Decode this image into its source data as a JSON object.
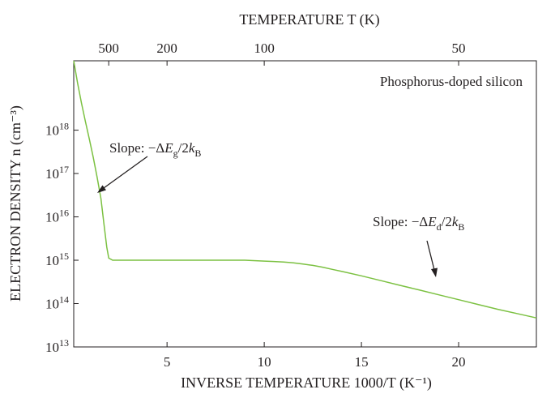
{
  "chart_data": {
    "type": "line",
    "title": "Phosphorus-doped silicon",
    "xlabel": "INVERSE TEMPERATURE 1000/T (K⁻¹)",
    "ylabel": "ELECTRON DENSITY n (cm⁻³)",
    "top_xlabel": "TEMPERATURE T (K)",
    "x_log": false,
    "y_log": true,
    "xlim": [
      0.2,
      24
    ],
    "ylim_exponent": [
      13,
      19.6
    ],
    "x_ticks": [
      5,
      10,
      15,
      20
    ],
    "x_tick_labels": [
      "5",
      "10",
      "15",
      "20"
    ],
    "y_ticks_exponent": [
      13,
      14,
      15,
      16,
      17,
      18
    ],
    "y_tick_labels_base": "10",
    "y_tick_labels_exp": [
      "13",
      "14",
      "15",
      "16",
      "17",
      "18"
    ],
    "top_ticks_T": [
      500,
      200,
      100,
      50
    ],
    "top_tick_labels": [
      "500",
      "200",
      "100",
      "50"
    ],
    "series": [
      {
        "x": [
          0.2,
          0.4,
          0.6,
          0.8,
          1.0,
          1.2,
          1.4,
          1.6,
          1.75,
          1.9,
          2.0,
          2.2,
          2.5,
          3,
          4,
          5,
          6,
          7,
          8,
          9,
          10,
          10.5,
          11,
          11.5,
          12,
          12.5,
          13,
          13.5,
          14,
          15,
          16,
          17,
          18,
          19,
          20,
          21,
          22,
          23,
          24
        ],
        "log_y": [
          19.6,
          19.08,
          18.62,
          18.2,
          17.8,
          17.38,
          16.92,
          16.42,
          15.85,
          15.3,
          15.05,
          15.0,
          15.0,
          15.0,
          15.0,
          15.0,
          15.0,
          15.0,
          15.0,
          15.0,
          14.98,
          14.97,
          14.96,
          14.94,
          14.91,
          14.88,
          14.84,
          14.79,
          14.74,
          14.64,
          14.53,
          14.42,
          14.31,
          14.2,
          14.09,
          13.98,
          13.87,
          13.77,
          13.67
        ]
      }
    ],
    "annotations": [
      {
        "prefix": "Slope: −Δ",
        "sym": "E",
        "sub": "g",
        "mid": "/2",
        "k": "k",
        "ksub": "B"
      },
      {
        "prefix": "Slope: −Δ",
        "sym": "E",
        "sub": "d",
        "mid": "/2",
        "k": "k",
        "ksub": "B"
      }
    ],
    "grid": false,
    "colors": {
      "curve": "#7cc142",
      "axis": "#231f20"
    }
  }
}
